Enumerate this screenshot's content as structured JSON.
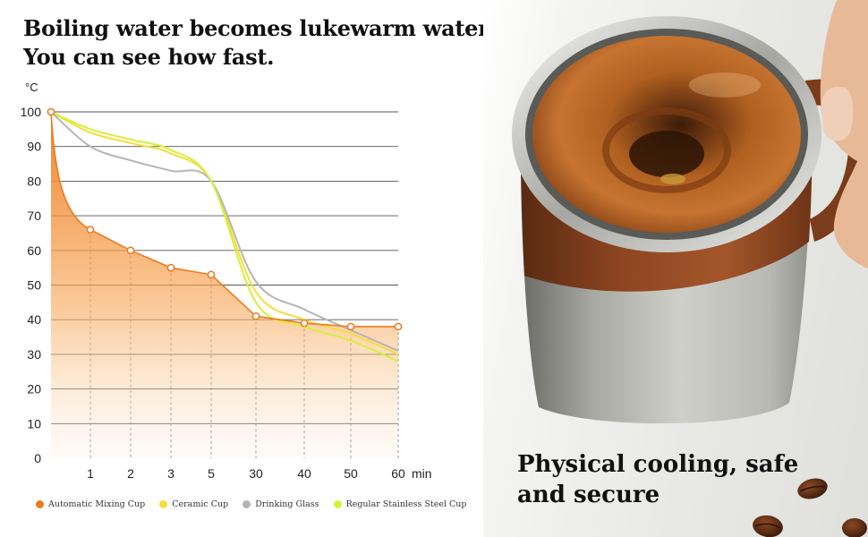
{
  "headline": {
    "line1": "Boiling water becomes lukewarm water",
    "line2": "You can see how fast."
  },
  "tagline": {
    "line1": "Physical cooling, safe",
    "line2": "and secure"
  },
  "colors": {
    "automatic": "#ee7a1f",
    "ceramic": "#f7dd3a",
    "glass": "#b5b5b5",
    "steel": "#d6f03a",
    "grid": "#555555"
  },
  "photo": {
    "subject": "automatic-mixing-cup-with-coffee",
    "decor": [
      "hand",
      "coffee-beans"
    ]
  },
  "chart_data": {
    "type": "line",
    "title": "Boiling water becomes lukewarm water",
    "ylabel": "°C",
    "xlabel": "min",
    "categories": [
      "0",
      "1",
      "2",
      "3",
      "5",
      "30",
      "40",
      "50",
      "60"
    ],
    "x_ticks": [
      "",
      "1",
      "2",
      "3",
      "5",
      "30",
      "40",
      "50",
      "60"
    ],
    "y_ticks": [
      0,
      10,
      20,
      30,
      40,
      50,
      60,
      70,
      80,
      90,
      100
    ],
    "ylim": [
      0,
      100
    ],
    "grid": "horizontal",
    "legend": "bottom",
    "series": [
      {
        "name": "Automatic Mixing Cup",
        "key": "automatic",
        "values": [
          100,
          66,
          60,
          55,
          53,
          41,
          39,
          38,
          38
        ],
        "markers": true,
        "filled": true
      },
      {
        "name": "Ceramic Cup",
        "key": "ceramic",
        "values": [
          100,
          94,
          91,
          88,
          80,
          48,
          40,
          36,
          30
        ]
      },
      {
        "name": "Drinking Glass",
        "key": "glass",
        "values": [
          100,
          90,
          86,
          83,
          80,
          51,
          43,
          37,
          31
        ]
      },
      {
        "name": "Regular Stainless Steel Cup",
        "key": "steel",
        "values": [
          100,
          95,
          92,
          89,
          80,
          45,
          38,
          34,
          28
        ]
      }
    ]
  }
}
